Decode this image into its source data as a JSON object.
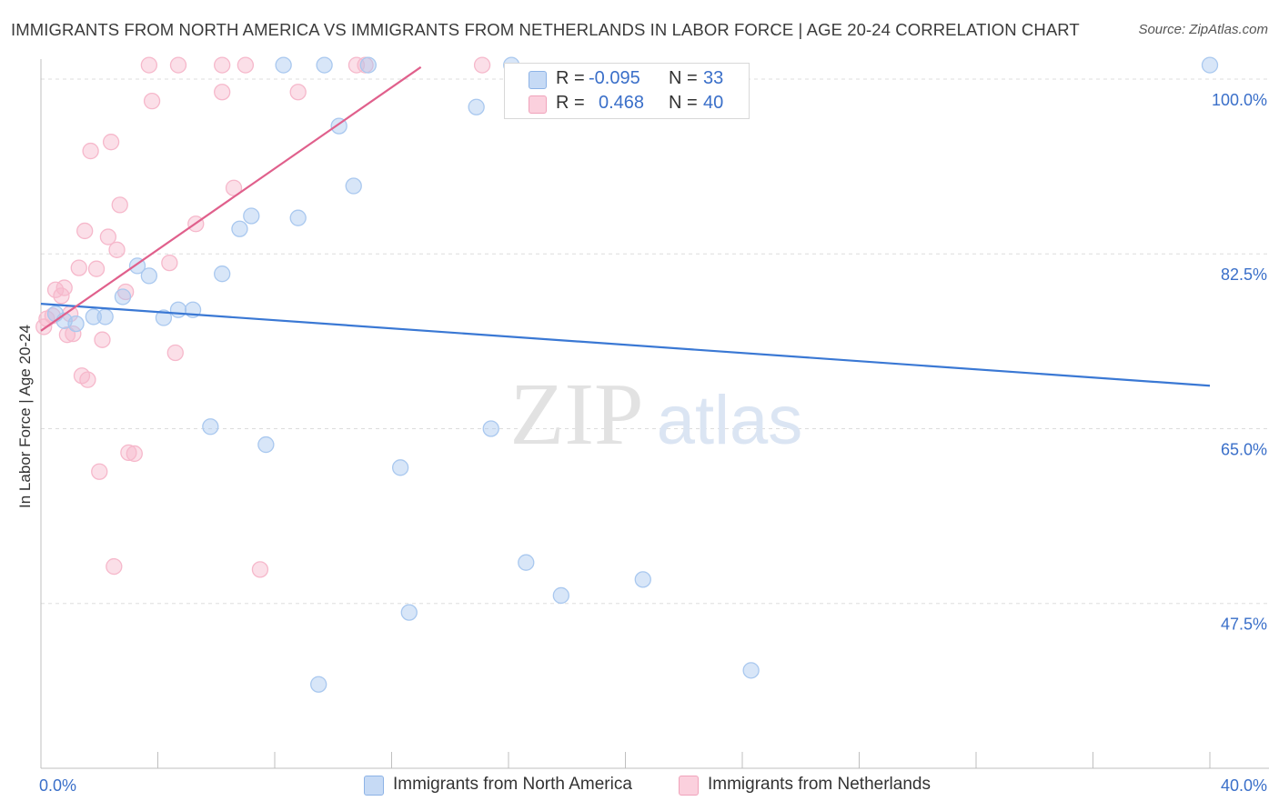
{
  "title": "IMMIGRANTS FROM NORTH AMERICA VS IMMIGRANTS FROM NETHERLANDS IN LABOR FORCE | AGE 20-24 CORRELATION CHART",
  "source": "Source: ZipAtlas.com",
  "watermark": {
    "zip": "ZIP",
    "atlas": "atlas"
  },
  "legend": {
    "r_label": "R =",
    "n_label": "N =",
    "rows": [
      {
        "r": "-0.095",
        "n": "33",
        "color": "#a9c8ef"
      },
      {
        "r": "0.468",
        "n": "40",
        "color": "#f6b8cb"
      }
    ]
  },
  "bottom_legend": [
    {
      "label": "Immigrants from North America",
      "color": "#a9c8ef"
    },
    {
      "label": "Immigrants from Netherlands",
      "color": "#f6b8cb"
    }
  ],
  "chart_data": {
    "type": "scatter",
    "title": "IMMIGRANTS FROM NORTH AMERICA VS IMMIGRANTS FROM NETHERLANDS IN LABOR FORCE | AGE 20-24 CORRELATION CHART",
    "xlabel": "",
    "ylabel": "In Labor Force | Age 20-24",
    "xlim": [
      0,
      40
    ],
    "ylim": [
      31,
      102
    ],
    "x_tick_labels": [
      {
        "value": 0,
        "label": "0.0%"
      },
      {
        "value": 40,
        "label": "40.0%"
      }
    ],
    "y_tick_labels": [
      {
        "value": 100,
        "label": "100.0%"
      },
      {
        "value": 82.5,
        "label": "82.5%"
      },
      {
        "value": 65,
        "label": "65.0%"
      },
      {
        "value": 47.5,
        "label": "47.5%"
      }
    ],
    "series": [
      {
        "name": "Immigrants from North America",
        "color": "#3a78d4",
        "fill": "#a9c8ef",
        "points": [
          [
            0.5,
            76.5
          ],
          [
            0.8,
            75.8
          ],
          [
            1.2,
            75.5
          ],
          [
            1.8,
            76.2
          ],
          [
            2.2,
            76.2
          ],
          [
            2.8,
            78.2
          ],
          [
            3.3,
            81.3
          ],
          [
            3.7,
            80.3
          ],
          [
            4.2,
            76.1
          ],
          [
            4.7,
            76.9
          ],
          [
            5.2,
            76.9
          ],
          [
            5.8,
            65.2
          ],
          [
            6.2,
            80.5
          ],
          [
            6.8,
            85.0
          ],
          [
            7.2,
            86.3
          ],
          [
            7.7,
            63.4
          ],
          [
            8.3,
            101.4
          ],
          [
            8.8,
            86.1
          ],
          [
            9.5,
            39.4
          ],
          [
            9.7,
            101.4
          ],
          [
            10.2,
            95.3
          ],
          [
            10.7,
            89.3
          ],
          [
            11.2,
            101.4
          ],
          [
            12.3,
            61.1
          ],
          [
            12.6,
            46.6
          ],
          [
            14.9,
            97.2
          ],
          [
            15.4,
            65.0
          ],
          [
            16.1,
            101.4
          ],
          [
            16.6,
            51.6
          ],
          [
            17.8,
            48.3
          ],
          [
            20.6,
            49.9
          ],
          [
            24.3,
            40.8
          ],
          [
            40.0,
            101.4
          ]
        ],
        "trend": {
          "x1": 0,
          "y1": 77.5,
          "x2": 40,
          "y2": 69.3
        }
      },
      {
        "name": "Immigrants from Netherlands",
        "color": "#e0608c",
        "fill": "#f6b8cb",
        "points": [
          [
            0.1,
            75.2
          ],
          [
            0.2,
            76.0
          ],
          [
            0.4,
            76.3
          ],
          [
            0.5,
            78.9
          ],
          [
            0.7,
            78.3
          ],
          [
            0.8,
            79.1
          ],
          [
            0.9,
            74.4
          ],
          [
            1.0,
            76.5
          ],
          [
            1.1,
            74.5
          ],
          [
            1.3,
            81.1
          ],
          [
            1.4,
            70.3
          ],
          [
            1.5,
            84.8
          ],
          [
            1.6,
            69.9
          ],
          [
            1.7,
            92.8
          ],
          [
            1.9,
            81.0
          ],
          [
            2.0,
            60.7
          ],
          [
            2.1,
            73.9
          ],
          [
            2.3,
            84.2
          ],
          [
            2.4,
            93.7
          ],
          [
            2.5,
            51.2
          ],
          [
            2.6,
            82.9
          ],
          [
            2.7,
            87.4
          ],
          [
            2.9,
            78.7
          ],
          [
            3.0,
            62.6
          ],
          [
            3.2,
            62.5
          ],
          [
            3.7,
            101.4
          ],
          [
            3.8,
            97.8
          ],
          [
            4.4,
            81.6
          ],
          [
            4.6,
            72.6
          ],
          [
            4.7,
            101.4
          ],
          [
            5.3,
            85.5
          ],
          [
            6.2,
            101.4
          ],
          [
            6.2,
            98.7
          ],
          [
            6.6,
            89.1
          ],
          [
            7.0,
            101.4
          ],
          [
            7.5,
            50.9
          ],
          [
            8.8,
            98.7
          ],
          [
            10.8,
            101.4
          ],
          [
            11.1,
            101.4
          ],
          [
            15.1,
            101.4
          ]
        ],
        "trend": {
          "x1": 0,
          "y1": 74.8,
          "x2": 13.0,
          "y2": 101.2
        }
      }
    ]
  }
}
